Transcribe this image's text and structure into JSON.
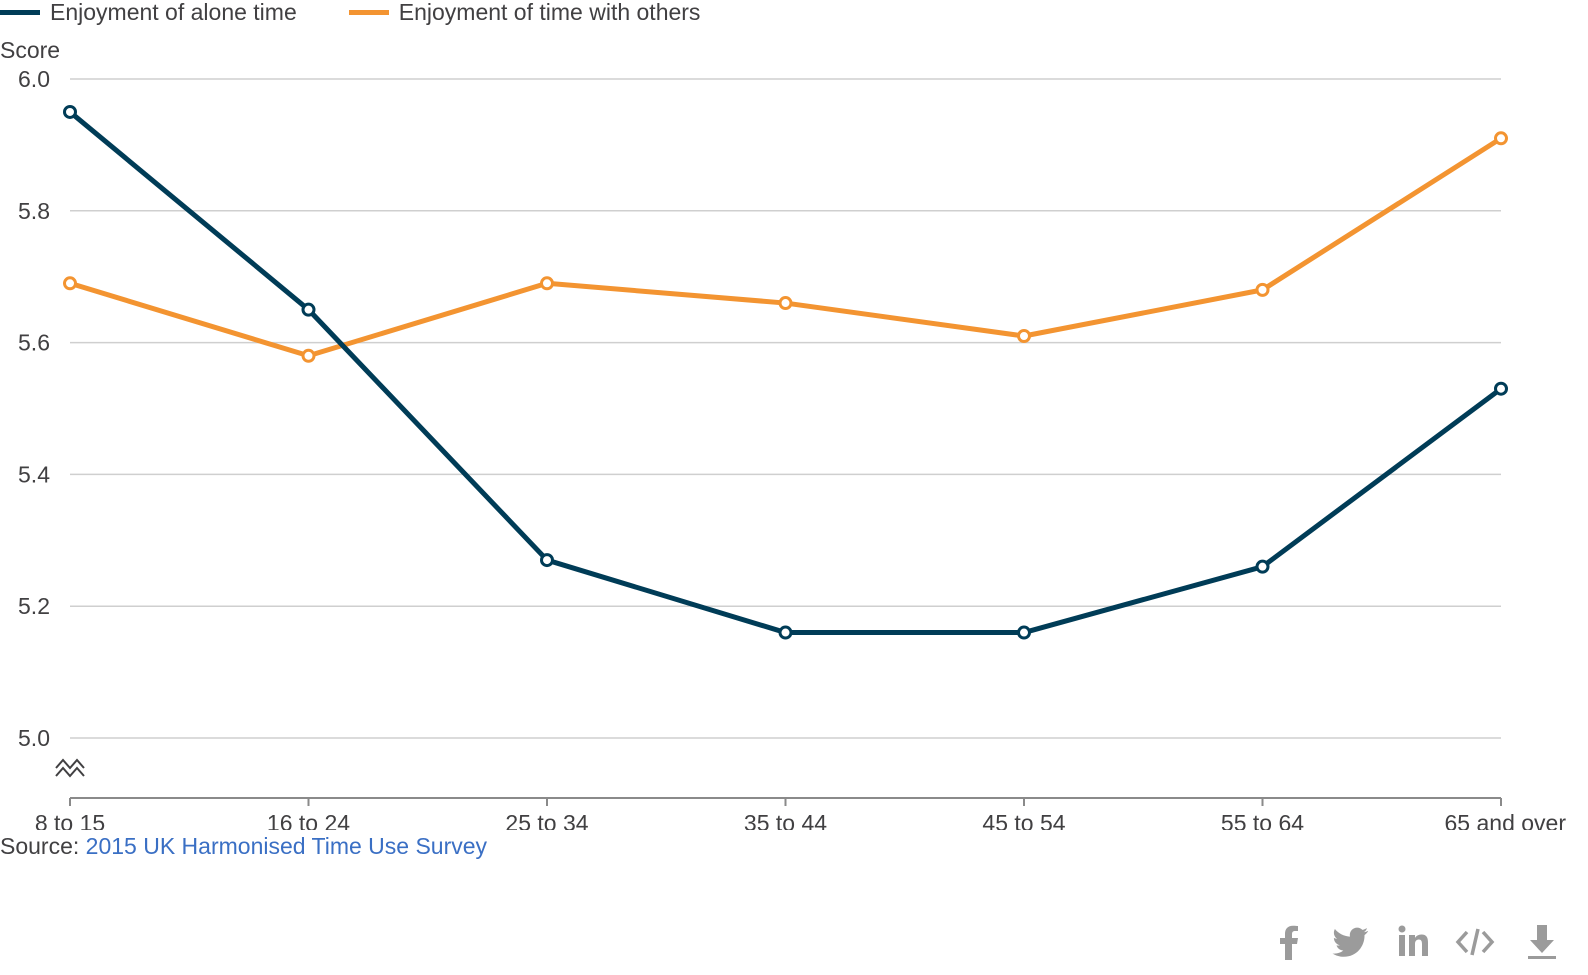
{
  "legend": [
    {
      "label": "Enjoyment of alone time",
      "color": "#003c57"
    },
    {
      "label": "Enjoyment of time with others",
      "color": "#f39431"
    }
  ],
  "source": {
    "prefix": "Source:",
    "link_text": "2015 UK Harmonised Time Use Survey",
    "link_color": "#3a6fc4"
  },
  "share_icons": [
    "facebook-icon",
    "twitter-icon",
    "linkedin-icon",
    "embed-code-icon",
    "download-icon"
  ],
  "chart_data": {
    "type": "line",
    "ylabel": "Score",
    "xlabel": "",
    "ylim": [
      4.9,
      6.0
    ],
    "yticks": [
      "6.0",
      "5.8",
      "5.6",
      "5.4",
      "5.2",
      "5.0"
    ],
    "y_axis_break": true,
    "grid": true,
    "legend_position": "top-left",
    "categories": [
      "8 to 15",
      "16 to 24",
      "25 to 34",
      "35 to 44",
      "45 to 54",
      "55 to 64",
      "65 and over"
    ],
    "series": [
      {
        "name": "Enjoyment of alone time",
        "color": "#003c57",
        "values": [
          5.95,
          5.65,
          5.27,
          5.16,
          5.16,
          5.26,
          5.53
        ]
      },
      {
        "name": "Enjoyment of time with others",
        "color": "#f39431",
        "values": [
          5.69,
          5.58,
          5.69,
          5.66,
          5.61,
          5.68,
          5.91
        ]
      }
    ]
  }
}
